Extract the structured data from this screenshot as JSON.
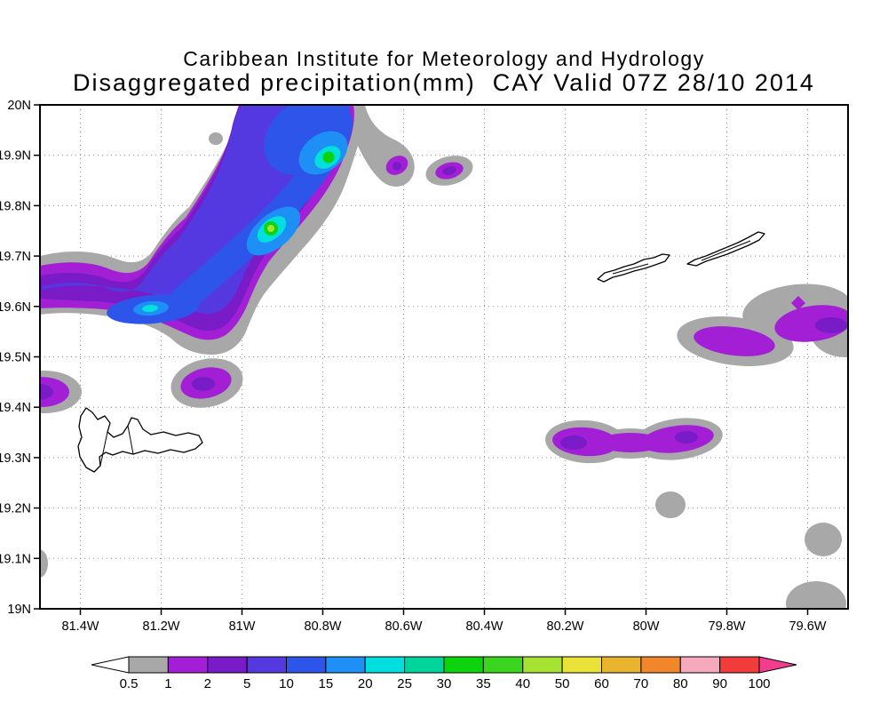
{
  "header": {
    "line1": "Caribbean Institute for Meteorology and Hydrology",
    "line2": "Disaggregated precipitation(mm)  CAY Valid 07Z 28/10 2014"
  },
  "chart_data": {
    "type": "heatmap",
    "variable": "Disaggregated precipitation",
    "units": "mm",
    "site": "CAY",
    "valid": "07Z 28/10 2014",
    "organization": "Caribbean Institute for Meteorology and Hydrology",
    "grid": "dotted",
    "legend_position": "bottom",
    "x_ticks": [
      "81.4W",
      "81.2W",
      "81W",
      "80.8W",
      "80.6W",
      "80.4W",
      "80.2W",
      "80W",
      "79.8W",
      "79.6W"
    ],
    "y_ticks": [
      "19N",
      "19.1N",
      "19.2N",
      "19.3N",
      "19.4N",
      "19.5N",
      "19.6N",
      "19.7N",
      "19.8N",
      "19.9N",
      "20N"
    ],
    "x_range_w": [
      81.5,
      79.5
    ],
    "y_range_n": [
      19.0,
      20.0
    ],
    "levels_mm": [
      0.5,
      1,
      2,
      5,
      10,
      15,
      20,
      25,
      30,
      35,
      40,
      50,
      60,
      70,
      80,
      90,
      100
    ],
    "colorbar": {
      "tick_labels": [
        "0.5",
        "1",
        "2",
        "5",
        "10",
        "15",
        "20",
        "25",
        "30",
        "35",
        "40",
        "50",
        "60",
        "70",
        "80",
        "90",
        "100"
      ],
      "segment_colors": [
        "#a8a8a8",
        "#a21fd5",
        "#7a1bc8",
        "#5439e0",
        "#2e55ea",
        "#1e8ff5",
        "#00dede",
        "#00d49c",
        "#0cd30c",
        "#3bd41e",
        "#a6e232",
        "#eae238",
        "#e9b42e",
        "#f2862b",
        "#f6a8bc",
        "#f23c3c"
      ],
      "below_color": "#ffffff",
      "above_color": "#f23c8e"
    },
    "cells": [
      {
        "area": "main band SW to NE",
        "center_lon_w": 81.0,
        "center_lat_n": 19.75,
        "peak_mm": 40,
        "peaks": [
          {
            "lon_w": 80.79,
            "lat_n": 19.9,
            "mm": 30
          },
          {
            "lon_w": 80.93,
            "lat_n": 19.76,
            "mm": 40
          },
          {
            "lon_w": 81.23,
            "lat_n": 19.6,
            "mm": 20
          }
        ]
      },
      {
        "area": "oval cell NE of band",
        "center_lon_w": 80.49,
        "center_lat_n": 19.87,
        "peak_mm": 2
      },
      {
        "area": "hook E of band top",
        "center_lon_w": 80.62,
        "center_lat_n": 19.85,
        "peak_mm": 2
      },
      {
        "area": "speck north",
        "center_lon_w": 80.97,
        "center_lat_n": 19.93,
        "peak_mm": 0.5
      },
      {
        "area": "east cluster",
        "center_lon_w": 79.62,
        "center_lat_n": 19.57,
        "peak_mm": 2
      },
      {
        "area": "south-central zonal band",
        "center_lon_w": 80.0,
        "center_lat_n": 19.33,
        "peak_mm": 2
      },
      {
        "area": "west edge cell",
        "center_lon_w": 81.5,
        "center_lat_n": 19.43,
        "peak_mm": 2
      },
      {
        "area": "cell N of large island",
        "center_lon_w": 81.09,
        "center_lat_n": 19.45,
        "peak_mm": 2
      },
      {
        "area": "speck",
        "center_lon_w": 79.94,
        "center_lat_n": 19.21,
        "peak_mm": 0.5
      },
      {
        "area": "speck near east edge",
        "center_lon_w": 79.56,
        "center_lat_n": 19.14,
        "peak_mm": 0.5
      },
      {
        "area": "SE corner cell",
        "center_lon_w": 79.58,
        "center_lat_n": 19.0,
        "peak_mm": 0.5
      },
      {
        "area": "west edge sliver",
        "center_lon_w": 81.5,
        "center_lat_n": 19.09,
        "peak_mm": 0.5
      }
    ]
  }
}
